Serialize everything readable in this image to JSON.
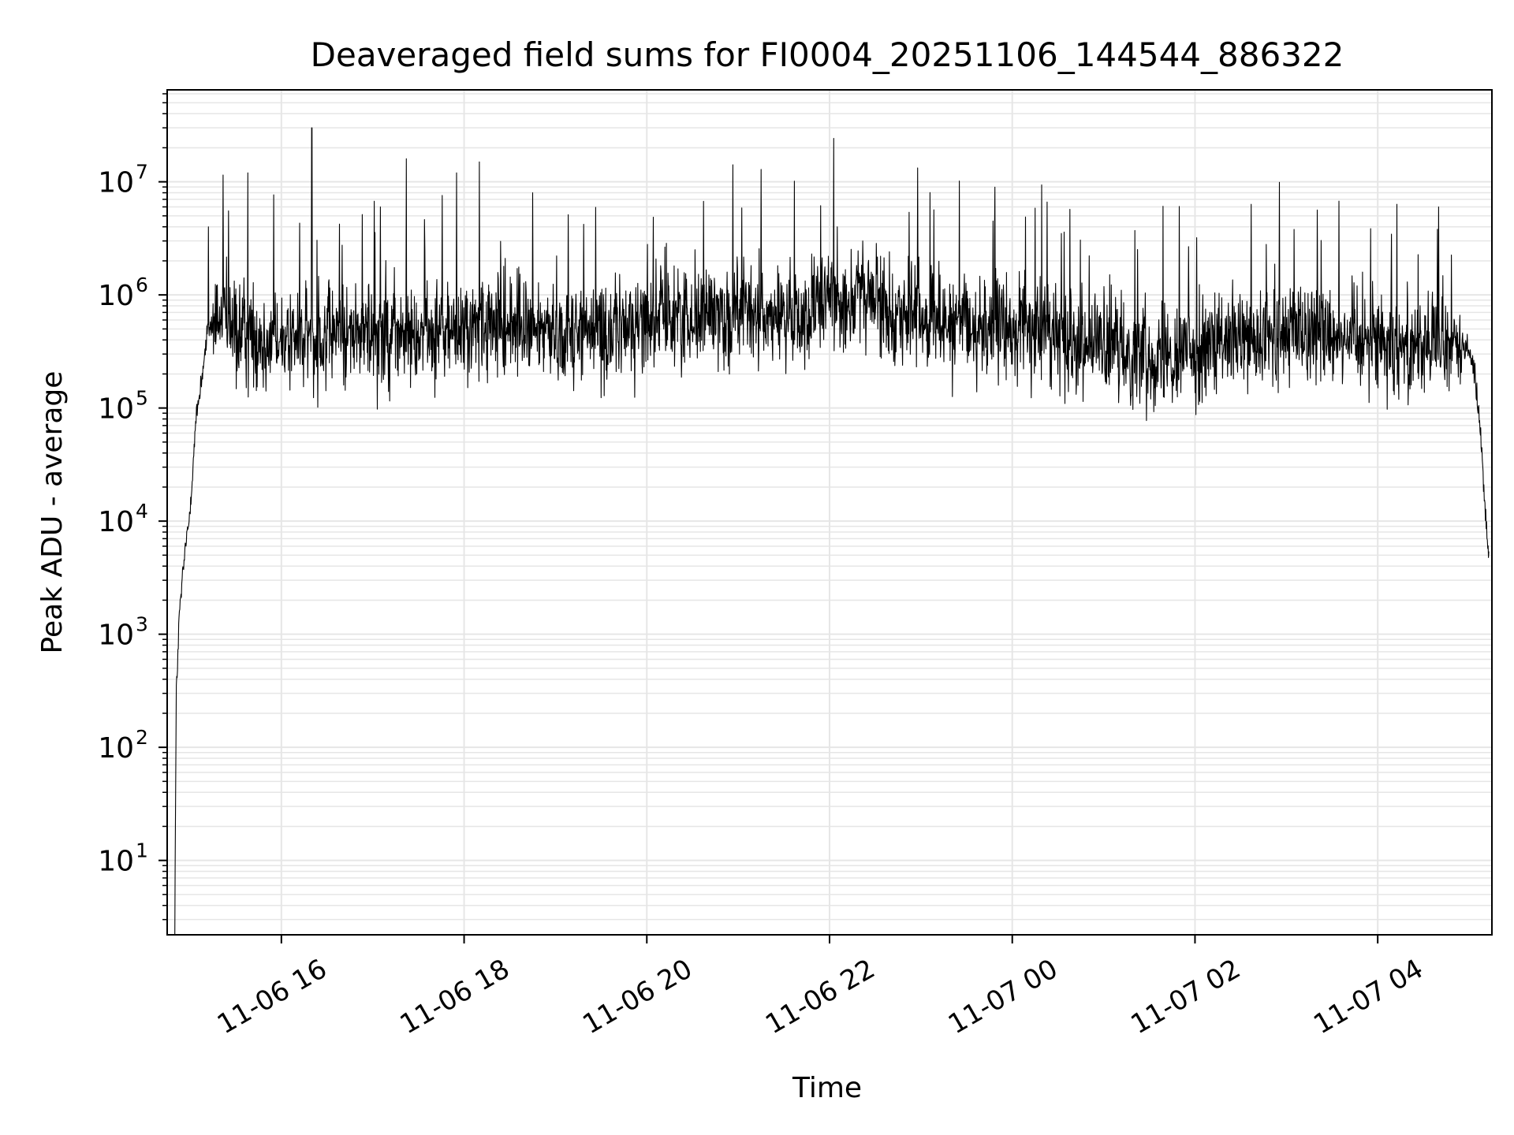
{
  "chart_data": {
    "type": "line",
    "title": "Deaveraged field sums for FI0004_20251106_144544_886322",
    "xlabel": "Time",
    "ylabel": "Peak ADU - average",
    "y_scale": "log",
    "grid": true,
    "grid_minor": true,
    "legend": "none",
    "line_color": "#000000",
    "grid_color": "#e6e6e6",
    "xlim": [
      "2025-11-06 14:45",
      "2025-11-07 05:15"
    ],
    "ylim": [
      2.2,
      65000000
    ],
    "x_ticks": [
      {
        "value": "2025-11-06 16:00",
        "label": "11-06 16"
      },
      {
        "value": "2025-11-06 18:00",
        "label": "11-06 18"
      },
      {
        "value": "2025-11-06 20:00",
        "label": "11-06 20"
      },
      {
        "value": "2025-11-06 22:00",
        "label": "11-06 22"
      },
      {
        "value": "2025-11-07 00:00",
        "label": "11-07 00"
      },
      {
        "value": "2025-11-07 02:00",
        "label": "11-07 02"
      },
      {
        "value": "2025-11-07 04:00",
        "label": "11-07 04"
      }
    ],
    "y_ticks": [
      {
        "value": 10,
        "base": "10",
        "exp": "1"
      },
      {
        "value": 100,
        "base": "10",
        "exp": "2"
      },
      {
        "value": 1000,
        "base": "10",
        "exp": "3"
      },
      {
        "value": 10000,
        "base": "10",
        "exp": "4"
      },
      {
        "value": 100000,
        "base": "10",
        "exp": "5"
      },
      {
        "value": 1000000,
        "base": "10",
        "exp": "6"
      },
      {
        "value": 10000000,
        "base": "10",
        "exp": "7"
      }
    ],
    "series": [
      {
        "x": [
          "2025-11-06 14:50",
          "2025-11-06 14:51",
          "2025-11-06 14:53",
          "2025-11-06 14:55",
          "2025-11-06 14:57",
          "2025-11-06 14:59",
          "2025-11-06 15:01",
          "2025-11-06 15:04",
          "2025-11-06 15:08",
          "2025-11-06 15:12",
          "2025-11-06 15:20",
          "2025-11-06 15:30",
          "2025-11-06 15:45",
          "2025-11-06 16:00",
          "2025-11-06 16:20",
          "2025-11-06 16:40",
          "2025-11-06 17:00",
          "2025-11-06 17:20",
          "2025-11-06 17:40",
          "2025-11-06 18:00",
          "2025-11-06 18:20",
          "2025-11-06 18:40",
          "2025-11-06 19:00",
          "2025-11-06 19:20",
          "2025-11-06 19:40",
          "2025-11-06 20:00",
          "2025-11-06 20:20",
          "2025-11-06 20:40",
          "2025-11-06 21:00",
          "2025-11-06 21:20",
          "2025-11-06 21:40",
          "2025-11-06 22:00",
          "2025-11-06 22:20",
          "2025-11-06 22:40",
          "2025-11-06 23:00",
          "2025-11-06 23:20",
          "2025-11-06 23:40",
          "2025-11-07 00:00",
          "2025-11-07 00:20",
          "2025-11-07 00:40",
          "2025-11-07 01:00",
          "2025-11-07 01:20",
          "2025-11-07 01:40",
          "2025-11-07 02:00",
          "2025-11-07 02:20",
          "2025-11-07 02:40",
          "2025-11-07 03:00",
          "2025-11-07 03:20",
          "2025-11-07 03:40",
          "2025-11-07 04:00",
          "2025-11-07 04:20",
          "2025-11-07 04:40",
          "2025-11-07 04:50",
          "2025-11-07 04:56",
          "2025-11-07 05:00",
          "2025-11-07 05:04",
          "2025-11-07 05:08",
          "2025-11-07 05:11",
          "2025-11-07 05:13"
        ],
        "y": [
          2.5,
          300,
          1500,
          3000,
          6000,
          9000,
          20000,
          80000,
          200000,
          500000,
          600000,
          450000,
          420000,
          400000,
          420000,
          450000,
          460000,
          430000,
          440000,
          480000,
          500000,
          520000,
          480000,
          470000,
          490000,
          600000,
          650000,
          680000,
          700000,
          650000,
          600000,
          900000,
          1000000,
          750000,
          600000,
          560000,
          520000,
          500000,
          480000,
          420000,
          350000,
          310000,
          300000,
          330000,
          350000,
          360000,
          450000,
          500000,
          450000,
          420000,
          380000,
          370000,
          360000,
          350000,
          300000,
          200000,
          50000,
          10000,
          5000
        ],
        "spikes": [
          {
            "x": "2025-11-06 15:12",
            "y": 4000000
          },
          {
            "x": "2025-11-06 15:38",
            "y": 12000000
          },
          {
            "x": "2025-11-06 16:20",
            "y": 30000000
          },
          {
            "x": "2025-11-06 17:05",
            "y": 6000000
          },
          {
            "x": "2025-11-06 17:22",
            "y": 16000000
          },
          {
            "x": "2025-11-06 17:55",
            "y": 12000000
          },
          {
            "x": "2025-11-06 18:10",
            "y": 15000000
          },
          {
            "x": "2025-11-06 18:45",
            "y": 8000000
          },
          {
            "x": "2025-11-06 22:05",
            "y": 4000000
          },
          {
            "x": "2025-11-07 03:05",
            "y": 3800000
          },
          {
            "x": "2025-11-07 04:40",
            "y": 6000000
          }
        ]
      }
    ]
  }
}
